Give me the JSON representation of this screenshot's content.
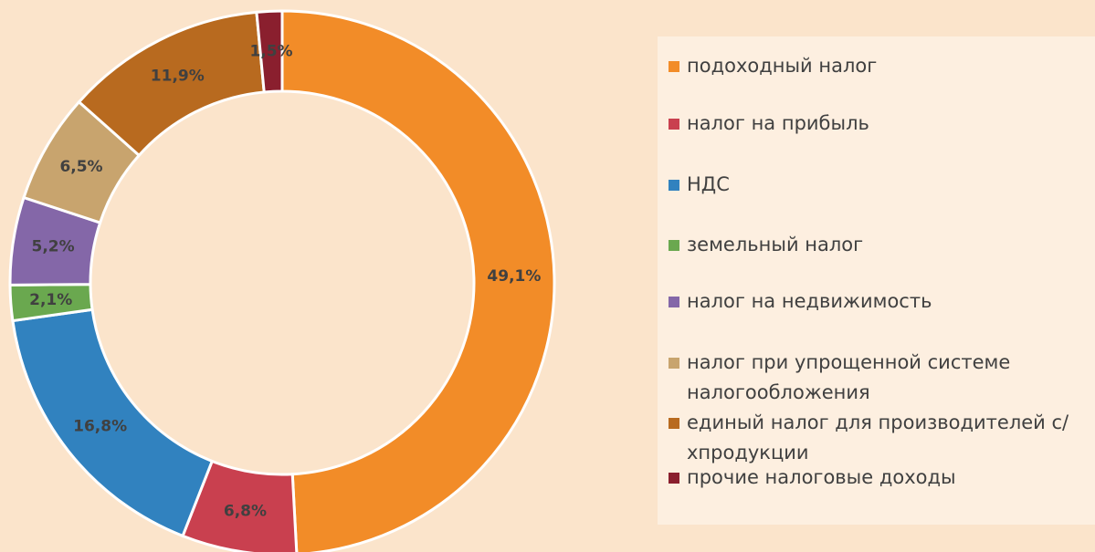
{
  "chart_data": {
    "type": "donut",
    "categories": [
      "подоходный налог",
      "налог на прибыль",
      "НДС",
      "земельный налог",
      "налог на недвижимость",
      "налог при упрощенной системе налогообложения",
      "единый налог для производителей с/хпродукции",
      "прочие налоговые доходы"
    ],
    "values": [
      49.1,
      6.8,
      16.8,
      2.1,
      5.2,
      6.5,
      11.9,
      1.5
    ],
    "value_labels": [
      "49,1%",
      "6,8%",
      "16,8%",
      "2,1%",
      "5,2%",
      "6,5%",
      "11,9%",
      "1,5%"
    ],
    "colors": [
      "#f28c28",
      "#c9404f",
      "#3182bf",
      "#6aa84f",
      "#8467a8",
      "#c8a46e",
      "#b86a1f",
      "#8a1f2e"
    ],
    "legend": "right"
  }
}
